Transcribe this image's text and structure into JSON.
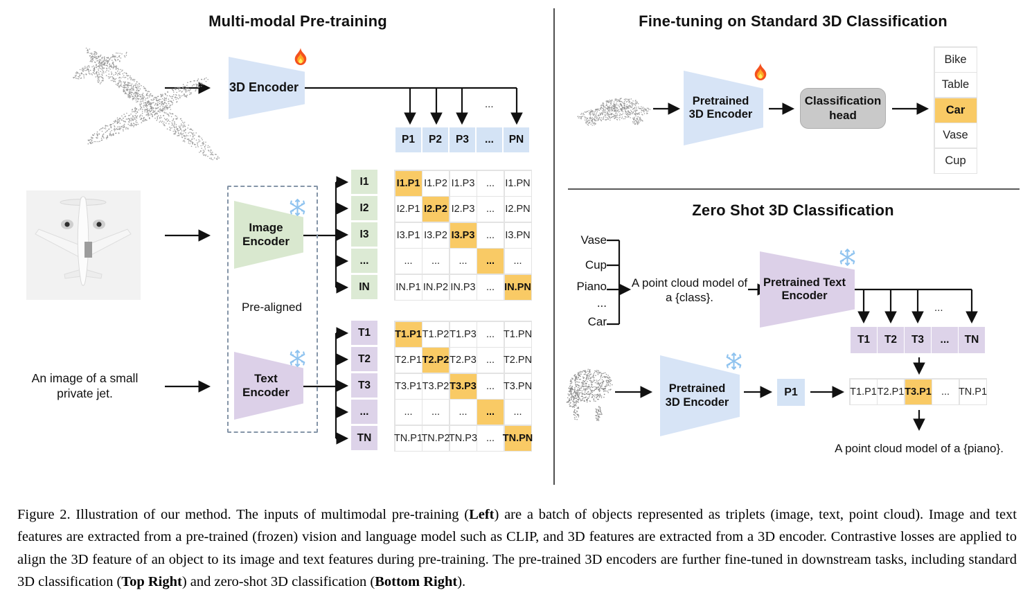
{
  "misc": {
    "ellipsis": "..."
  },
  "left": {
    "title": "Multi-modal Pre-training",
    "encoder_3d_label": "3D Encoder",
    "encoder_3d_status_icon": "fire",
    "p_row": {
      "cells": [
        "P1",
        "P2",
        "P3",
        "...",
        "PN"
      ]
    },
    "image_encoder_label": "Image Encoder",
    "image_encoder_status_icon": "snowflake",
    "text_encoder_label": "Text Encoder",
    "text_encoder_status_icon": "snowflake",
    "pre_aligned_label": "Pre-aligned",
    "jet_caption": "An image of a small private jet.",
    "image_rows": {
      "cells": [
        "I1",
        "I2",
        "I3",
        "...",
        "IN"
      ]
    },
    "image_matrix": {
      "highlight": "diagonal",
      "rows": [
        [
          "I1.P1",
          "I1.P2",
          "I1.P3",
          "...",
          "I1.PN"
        ],
        [
          "I2.P1",
          "I2.P2",
          "I2.P3",
          "...",
          "I2.PN"
        ],
        [
          "I3.P1",
          "I3.P2",
          "I3.P3",
          "...",
          "I3.PN"
        ],
        [
          "...",
          "...",
          "...",
          "...",
          "..."
        ],
        [
          "IN.P1",
          "IN.P2",
          "IN.P3",
          "...",
          "IN.PN"
        ]
      ]
    },
    "text_rows": {
      "cells": [
        "T1",
        "T2",
        "T3",
        "...",
        "TN"
      ]
    },
    "text_matrix": {
      "highlight": "diagonal",
      "rows": [
        [
          "T1.P1",
          "T1.P2",
          "T1.P3",
          "...",
          "T1.PN"
        ],
        [
          "T2.P1",
          "T2.P2",
          "T2.P3",
          "...",
          "T2.PN"
        ],
        [
          "T3.P1",
          "T3.P2",
          "T3.P3",
          "...",
          "T3.PN"
        ],
        [
          "...",
          "...",
          "...",
          "...",
          "..."
        ],
        [
          "TN.P1",
          "TN.P2",
          "TN.P3",
          "...",
          "TN.PN"
        ]
      ]
    }
  },
  "top_right": {
    "title": "Fine-tuning on Standard 3D Classification",
    "encoder_label": "Pretrained 3D Encoder",
    "encoder_status_icon": "fire",
    "head_label": "Classification head",
    "class_list": {
      "highlight_index": 2,
      "cells": [
        "Bike",
        "Table",
        "Car",
        "Vase",
        "Cup"
      ]
    }
  },
  "bottom_right": {
    "title": "Zero Shot 3D Classification",
    "query_classes": {
      "cells": [
        "Vase",
        "Cup",
        "Piano",
        "...",
        "Car"
      ]
    },
    "prompt_template": "A point cloud model of a {class}.",
    "text_encoder_label": "Pretrained Text Encoder",
    "text_encoder_status_icon": "snowflake",
    "t_row": {
      "cells": [
        "T1",
        "T2",
        "T3",
        "...",
        "TN"
      ]
    },
    "encoder_3d_label": "Pretrained 3D Encoder",
    "encoder_3d_status_icon": "snowflake",
    "p1_label": "P1",
    "tp1_row": {
      "highlight_index": 2,
      "cells": [
        "T1.P1",
        "T2.P1",
        "T3.P1",
        "...",
        "TN.P1"
      ]
    },
    "result_prompt": "A point cloud model of a {piano}."
  },
  "caption": {
    "segments": [
      {
        "t": "Figure 2. Illustration of our method. The inputs of multimodal pre-training (",
        "b": false
      },
      {
        "t": "Left",
        "b": true
      },
      {
        "t": ") are a batch of objects represented as triplets (image, text, point cloud).  Image and text features are extracted from a pre-trained (frozen) vision and language model such as CLIP, and 3D features are extracted from a 3D encoder.  Contrastive losses are applied to align the 3D feature of an object to its image and text features during pre-training.  The pre-trained 3D encoders are further fine-tuned in downstream tasks, including standard 3D classification (",
        "b": false
      },
      {
        "t": "Top Right",
        "b": true
      },
      {
        "t": ") and zero-shot 3D classification (",
        "b": false
      },
      {
        "t": "Bottom Right",
        "b": true
      },
      {
        "t": ").",
        "b": false
      }
    ]
  }
}
